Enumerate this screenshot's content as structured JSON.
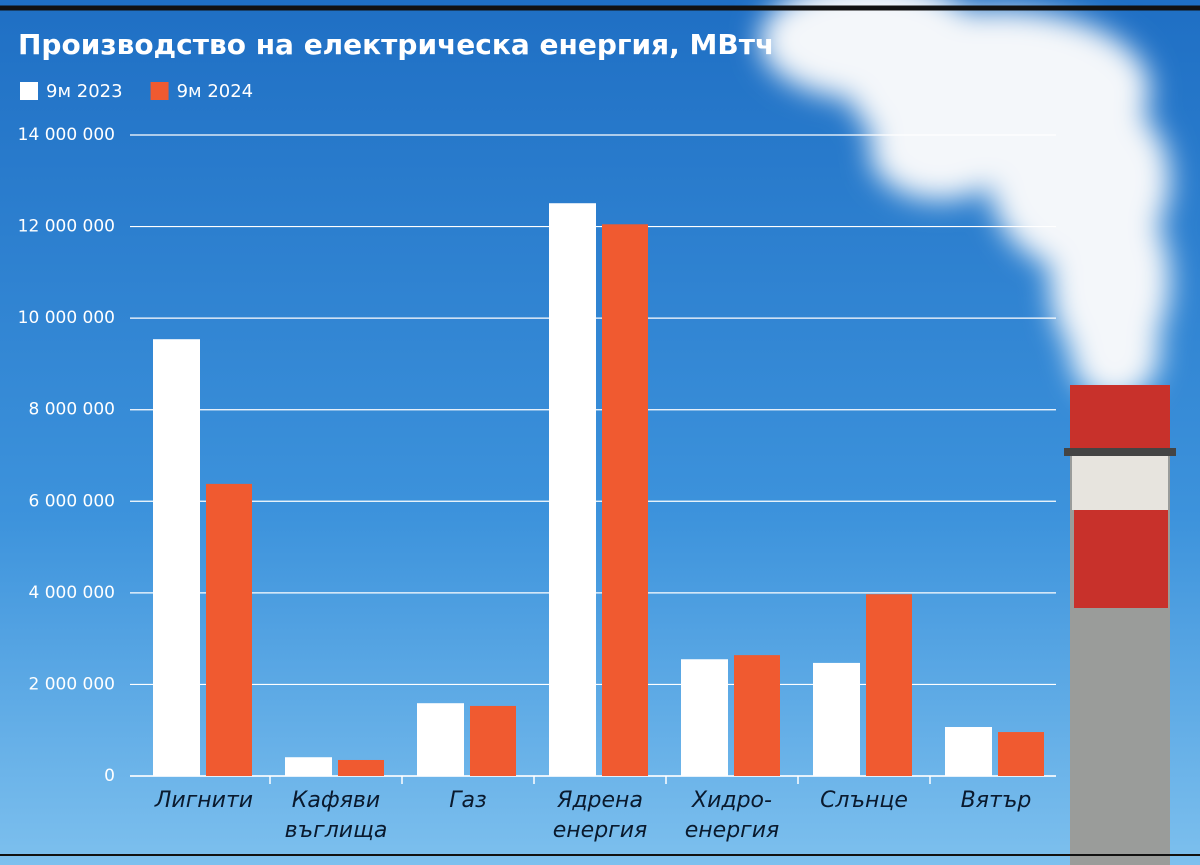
{
  "chart_data": {
    "type": "bar",
    "title": "Производство на електрическа енергия, МВтч",
    "categories": [
      "Лигнити",
      "Кафяви\nвъглища",
      "Газ",
      "Ядрена\nенергия",
      "Хидро-\nенергия",
      "Слънце",
      "Вятър"
    ],
    "series": [
      {
        "name": "9м 2023",
        "color": "#ffffff",
        "values": [
          9540000,
          410000,
          1590000,
          12510000,
          2550000,
          2470000,
          1070000
        ]
      },
      {
        "name": "9м 2024",
        "color": "#f05a30",
        "values": [
          6380000,
          350000,
          1530000,
          12050000,
          2640000,
          3970000,
          960000
        ]
      }
    ],
    "ylim": [
      0,
      14000000
    ],
    "yticks": [
      0,
      {
        "value": 2000000,
        "label": "2 000 000"
      },
      {
        "value": 4000000,
        "label": "4 000 000"
      },
      {
        "value": 6000000,
        "label": "6 000 000"
      },
      {
        "value": 8000000,
        "label": "8 000 000"
      },
      {
        "value": 10000000,
        "label": "10 000 000"
      },
      {
        "value": 12000000,
        "label": "12 000 000"
      },
      {
        "value": 14000000,
        "label": "14 000 000"
      }
    ],
    "grid": true
  }
}
